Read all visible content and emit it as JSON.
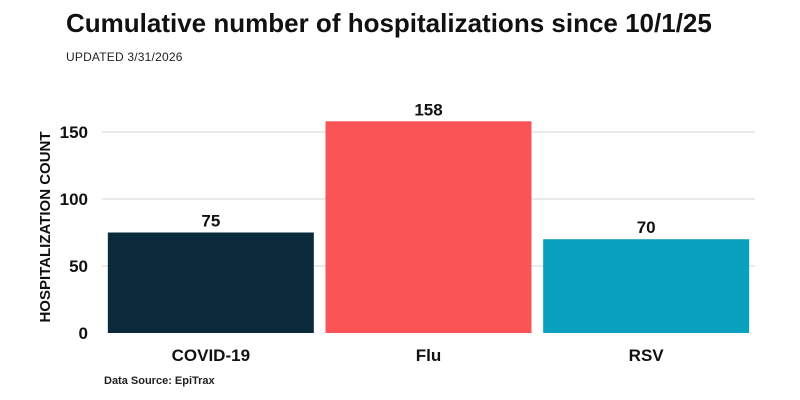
{
  "title": "Cumulative number of hospitalizations since 10/1/25",
  "subtitle": "UPDATED 3/31/2026",
  "source": "Data Source: EpiTrax",
  "chart_data": {
    "type": "bar",
    "categories": [
      "COVID-19",
      "Flu",
      "RSV"
    ],
    "values": [
      75,
      158,
      70
    ],
    "data_labels": [
      "75",
      "158",
      "70"
    ],
    "colors": [
      "#0a2a3c",
      "#fb5456",
      "#0aa0c0"
    ],
    "ylabel": "HOSPITALIZATION COUNT",
    "xlabel": "",
    "ylim": [
      0,
      175
    ],
    "yticks": [
      0,
      50,
      100,
      150
    ],
    "grid": true,
    "legend": "none"
  }
}
